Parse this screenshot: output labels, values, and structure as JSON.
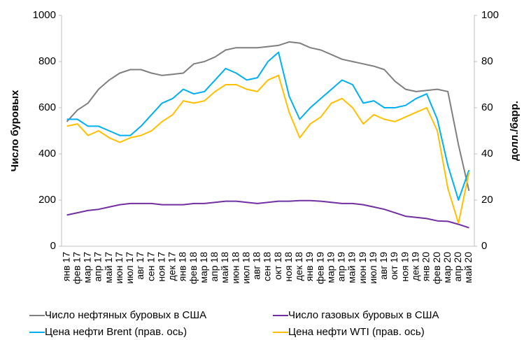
{
  "chart_data": {
    "type": "line",
    "y_label": "Число буровых",
    "y2_label": "долл./барр.",
    "categories": [
      "янв 17",
      "фев 17",
      "мар 17",
      "апр 17",
      "май 17",
      "июн 17",
      "июл 17",
      "авг 17",
      "сен 17",
      "ноя 17",
      "дек 17",
      "янв 18",
      "фев 18",
      "мар 18",
      "апр 18",
      "май 18",
      "июн 18",
      "июл 18",
      "авг 18",
      "сен 18",
      "окт 18",
      "ноя 18",
      "дек 18",
      "янв 19",
      "фев 19",
      "мар 19",
      "апр 19",
      "май 19",
      "июн 19",
      "июл 19",
      "авг 19",
      "окт 19",
      "ноя 19",
      "дек 19",
      "янв 20",
      "фев 20",
      "мар 20",
      "апр 20",
      "май 20"
    ],
    "series": [
      {
        "name": "Число нефтяных буровых в США",
        "color": "#7f7f7f",
        "values": [
          540,
          590,
          620,
          680,
          720,
          750,
          765,
          765,
          750,
          740,
          745,
          750,
          790,
          800,
          820,
          850,
          860,
          860,
          860,
          865,
          870,
          885,
          880,
          860,
          850,
          830,
          810,
          800,
          790,
          780,
          765,
          715,
          680,
          670,
          675,
          680,
          670,
          440,
          240
        ]
      },
      {
        "name": "Число газовых буровых в США",
        "color": "#7030a0",
        "values": [
          135,
          145,
          155,
          160,
          170,
          180,
          185,
          185,
          185,
          180,
          180,
          180,
          185,
          185,
          190,
          195,
          195,
          190,
          185,
          190,
          195,
          195,
          198,
          198,
          195,
          190,
          185,
          185,
          180,
          170,
          160,
          145,
          130,
          125,
          120,
          110,
          108,
          95,
          80
        ]
      },
      {
        "name": "Цена нефти Brent (прав. ось)",
        "color": "#00b0f0",
        "axis": "y2",
        "values": [
          55,
          55,
          52,
          52,
          50,
          48,
          48,
          52,
          57,
          62,
          64,
          68,
          66,
          67,
          72,
          77,
          75,
          72,
          73,
          80,
          84,
          65,
          55,
          60,
          64,
          68,
          72,
          70,
          62,
          63,
          60,
          60,
          61,
          64,
          66,
          55,
          35,
          20,
          33
        ]
      },
      {
        "name": "Цена нефти WTI (прав. ось)",
        "color": "#ffc000",
        "axis": "y2",
        "values": [
          52,
          53,
          48,
          50,
          47,
          45,
          47,
          48,
          50,
          54,
          57,
          63,
          62,
          63,
          67,
          70,
          70,
          68,
          67,
          72,
          74,
          58,
          47,
          53,
          56,
          62,
          64,
          60,
          53,
          57,
          55,
          54,
          56,
          58,
          60,
          50,
          25,
          10,
          32
        ]
      }
    ],
    "ylim": [
      0,
      1000
    ],
    "yticks": [
      0,
      200,
      400,
      600,
      800,
      1000
    ],
    "y2lim": [
      0,
      100
    ],
    "y2ticks": [
      0,
      20,
      40,
      60,
      80,
      100
    ]
  }
}
